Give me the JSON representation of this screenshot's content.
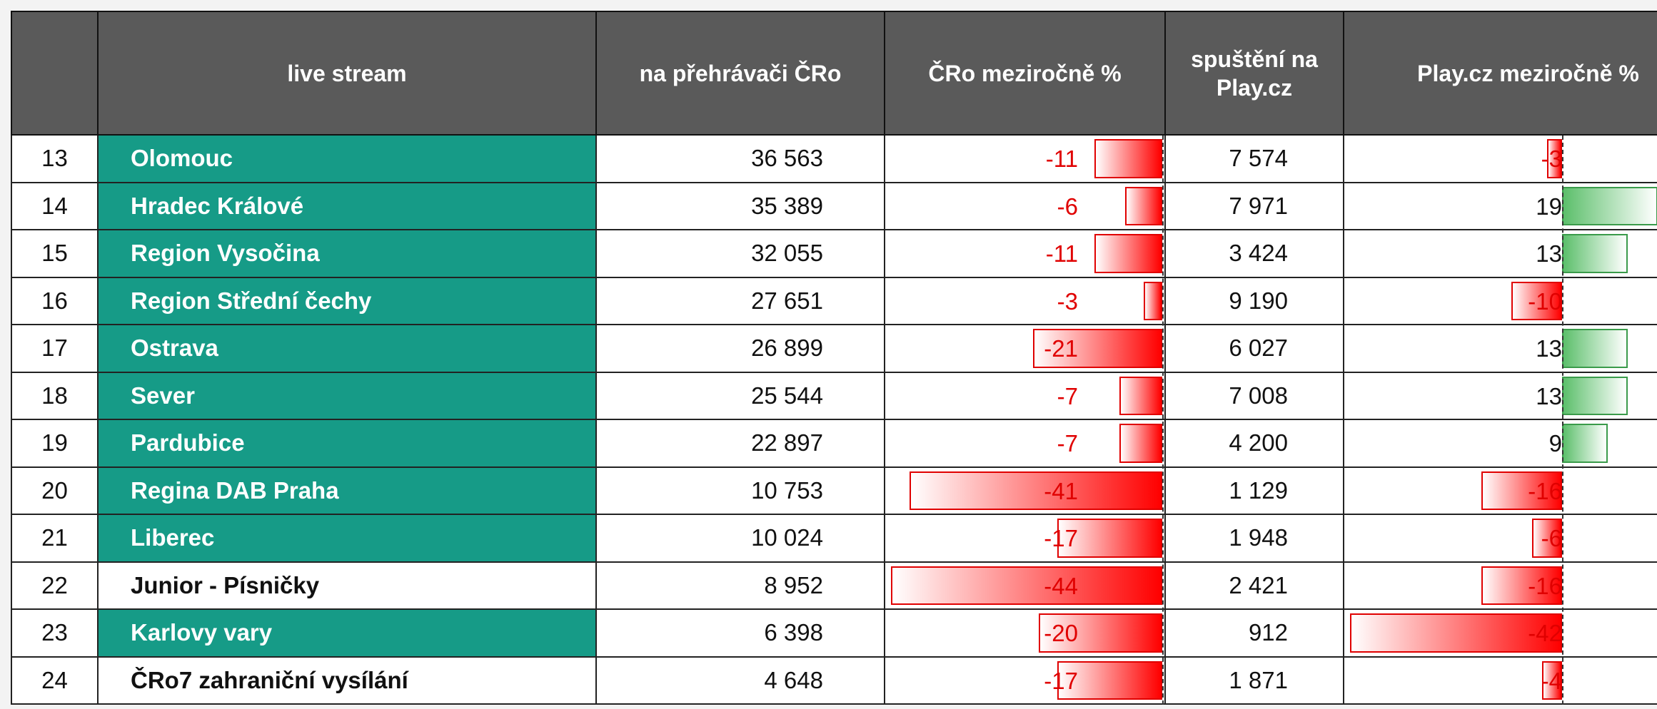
{
  "table": {
    "headers": [
      "live stream",
      "na přehrávači ČRo",
      "ČRo meziročně  %",
      "spuštění na\nPlay.cz",
      "Play.cz meziročně %"
    ],
    "rows": [
      {
        "index": 13,
        "name": "Olomouc",
        "cro": "36 563",
        "cro_yoy": -11,
        "play": "7 574",
        "play_yoy": -3,
        "fill": "#169b87"
      },
      {
        "index": 14,
        "name": "Hradec Králové",
        "cro": "35 389",
        "cro_yoy": -6,
        "play": "7 971",
        "play_yoy": 19,
        "fill": "#169b87"
      },
      {
        "index": 15,
        "name": "Region Vysočina",
        "cro": "32 055",
        "cro_yoy": -11,
        "play": "3 424",
        "play_yoy": 13,
        "fill": "#169b87"
      },
      {
        "index": 16,
        "name": "Region Střední čechy",
        "cro": "27 651",
        "cro_yoy": -3,
        "play": "9 190",
        "play_yoy": -10,
        "fill": "#169b87"
      },
      {
        "index": 17,
        "name": "Ostrava",
        "cro": "26 899",
        "cro_yoy": -21,
        "play": "6 027",
        "play_yoy": 13,
        "fill": "#169b87"
      },
      {
        "index": 18,
        "name": "Sever",
        "cro": "25 544",
        "cro_yoy": -7,
        "play": "7 008",
        "play_yoy": 13,
        "fill": "#169b87"
      },
      {
        "index": 19,
        "name": "Pardubice",
        "cro": "22 897",
        "cro_yoy": -7,
        "play": "4 200",
        "play_yoy": 9,
        "fill": "#169b87"
      },
      {
        "index": 20,
        "name": "Regina DAB Praha",
        "cro": "10 753",
        "cro_yoy": -41,
        "play": "1 129",
        "play_yoy": -16,
        "fill": "#169b87"
      },
      {
        "index": 21,
        "name": "Liberec",
        "cro": "10 024",
        "cro_yoy": -17,
        "play": "1 948",
        "play_yoy": -6,
        "fill": "#169b87"
      },
      {
        "index": 22,
        "name": "Junior - Písničky",
        "cro": "8 952",
        "cro_yoy": -44,
        "play": "2 421",
        "play_yoy": -16,
        "fill": "#ffffff"
      },
      {
        "index": 23,
        "name": "Karlovy vary",
        "cro": "6 398",
        "cro_yoy": -20,
        "play": "912",
        "play_yoy": -42,
        "fill": "#169b87"
      },
      {
        "index": 24,
        "name": "ČRo7 zahraniční vysílání",
        "cro": "4 648",
        "cro_yoy": -17,
        "play": "1 871",
        "play_yoy": -4,
        "fill": "#ffffff"
      }
    ]
  }
}
